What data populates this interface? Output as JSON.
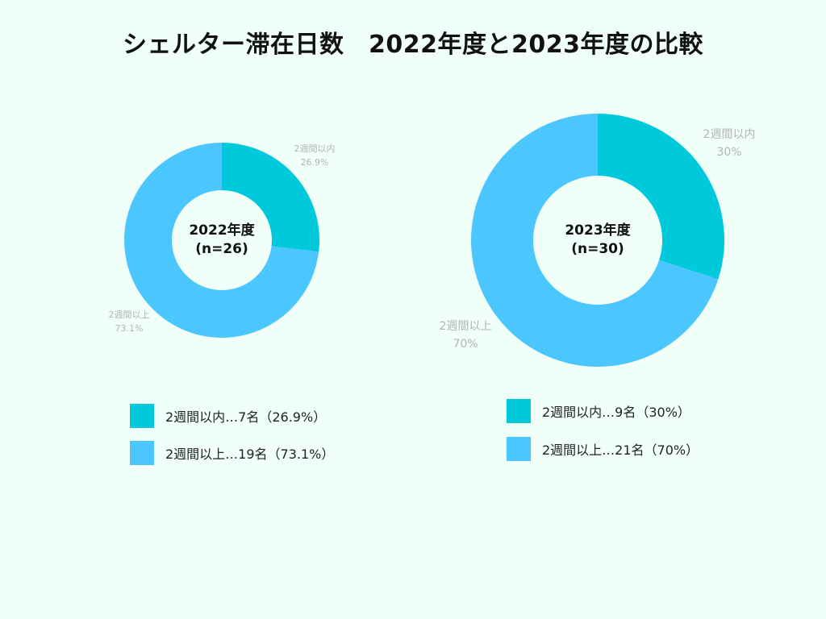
{
  "title": "シェルター滞在日数　2022年度と2023年度の比較",
  "colors": {
    "within": "#00c9db",
    "over": "#4cc6ff",
    "outside_label": "#b3b3b3",
    "background": "#f0fff8"
  },
  "chart_data": [
    {
      "type": "pie",
      "center_label": [
        "2022年度",
        "(n=26)"
      ],
      "slices": [
        {
          "label": "2週間以内",
          "value": 26.9,
          "display": "26.9%"
        },
        {
          "label": "2週間以上",
          "value": 73.1,
          "display": "73.1%"
        }
      ],
      "legend": [
        "2週間以内…7名（26.9%）",
        "2週間以上…19名（73.1%）"
      ]
    },
    {
      "type": "pie",
      "center_label": [
        "2023年度",
        "(n=30)"
      ],
      "slices": [
        {
          "label": "2週間以内",
          "value": 30,
          "display": "30%"
        },
        {
          "label": "2週間以上",
          "value": 70,
          "display": "70%"
        }
      ],
      "legend": [
        "2週間以内…9名（30%）",
        "2週間以上…21名（70%）"
      ]
    }
  ]
}
